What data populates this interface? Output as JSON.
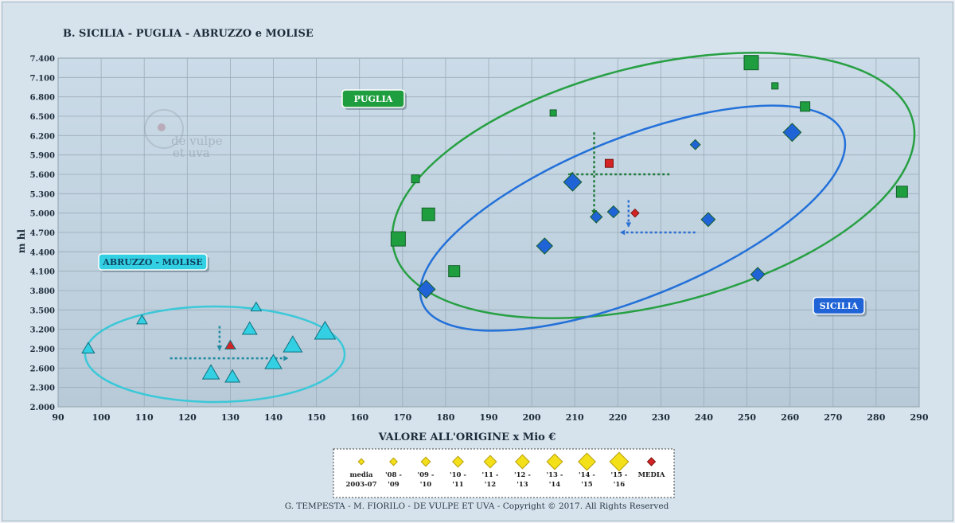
{
  "chart_data": {
    "type": "scatter",
    "title": "B.  SICILIA - PUGLIA - ABRUZZO e MOLISE",
    "xlabel": "VALORE ALL'ORIGINE  x Mio €",
    "ylabel": "m hl",
    "xlim": [
      90,
      290
    ],
    "ylim": [
      2000,
      7400
    ],
    "xticks": [
      "90",
      "100",
      "110",
      "120",
      "130",
      "140",
      "150",
      "160",
      "170",
      "180",
      "190",
      "200",
      "210",
      "220",
      "230",
      "240",
      "250",
      "260",
      "270",
      "280",
      "290"
    ],
    "yticks": [
      "2.000",
      "2.300",
      "2.600",
      "2.900",
      "3.200",
      "3.500",
      "3.800",
      "4.100",
      "4.400",
      "4.700",
      "5.000",
      "5.300",
      "5.600",
      "5.900",
      "6.200",
      "6.500",
      "6.800",
      "7.100",
      "7.400"
    ],
    "grid": true,
    "series": [
      {
        "name": "PUGLIA",
        "marker": "square",
        "color": "#1f9e3f",
        "points": [
          {
            "x": 169,
            "y": 4600,
            "s": 9
          },
          {
            "x": 176,
            "y": 4980,
            "s": 8
          },
          {
            "x": 182,
            "y": 4100,
            "s": 7
          },
          {
            "x": 173,
            "y": 5530,
            "s": 5
          },
          {
            "x": 205,
            "y": 6550,
            "s": 4
          },
          {
            "x": 251,
            "y": 7330,
            "s": 9
          },
          {
            "x": 256.5,
            "y": 6970,
            "s": 4
          },
          {
            "x": 263.5,
            "y": 6650,
            "s": 6
          },
          {
            "x": 286,
            "y": 5330,
            "s": 7
          }
        ],
        "media": {
          "x": 218,
          "y": 5770
        }
      },
      {
        "name": "SICILIA",
        "marker": "diamond",
        "color": "#1f63d6",
        "points": [
          {
            "x": 175.5,
            "y": 3820,
            "s": 9
          },
          {
            "x": 203,
            "y": 4490,
            "s": 8
          },
          {
            "x": 209.5,
            "y": 5480,
            "s": 9
          },
          {
            "x": 215,
            "y": 4940,
            "s": 6
          },
          {
            "x": 219,
            "y": 5020,
            "s": 6
          },
          {
            "x": 238,
            "y": 6060,
            "s": 5
          },
          {
            "x": 241,
            "y": 4900,
            "s": 7
          },
          {
            "x": 252.5,
            "y": 4050,
            "s": 7
          },
          {
            "x": 260.5,
            "y": 6250,
            "s": 9
          }
        ],
        "media": {
          "x": 224,
          "y": 5000
        }
      },
      {
        "name": "ABRUZZO - MOLISE",
        "marker": "triangle",
        "color": "#33d0e4",
        "points": [
          {
            "x": 97,
            "y": 2900,
            "s": 6
          },
          {
            "x": 109.5,
            "y": 3340,
            "s": 5
          },
          {
            "x": 125.5,
            "y": 2520,
            "s": 8
          },
          {
            "x": 130.5,
            "y": 2460,
            "s": 7
          },
          {
            "x": 134.5,
            "y": 3200,
            "s": 7
          },
          {
            "x": 136,
            "y": 3540,
            "s": 5
          },
          {
            "x": 140,
            "y": 2680,
            "s": 8
          },
          {
            "x": 144.5,
            "y": 2950,
            "s": 9
          },
          {
            "x": 152,
            "y": 3160,
            "s": 10
          }
        ],
        "media": {
          "x": 130,
          "y": 2950
        }
      }
    ],
    "region_labels": [
      {
        "text": "PUGLIA",
        "color": "#1f9e3f"
      },
      {
        "text": "ABRUZZO - MOLISE",
        "color": "#33d0e4"
      },
      {
        "text": "SICILIA",
        "color": "#1f63d6"
      }
    ],
    "legend": {
      "placement": "bottom-center",
      "items": [
        {
          "line1": "media",
          "line2": "2003-07"
        },
        {
          "line1": "'08 -",
          "line2": "'09"
        },
        {
          "line1": "'09 -",
          "line2": "'10"
        },
        {
          "line1": "'10 -",
          "line2": "'11"
        },
        {
          "line1": "'11 -",
          "line2": "'12"
        },
        {
          "line1": "'12 -",
          "line2": "'13"
        },
        {
          "line1": "'13 -",
          "line2": "'14"
        },
        {
          "line1": "'14 -",
          "line2": "'15"
        },
        {
          "line1": "'15 -",
          "line2": "'16"
        },
        {
          "line1": "MEDIA",
          "line2": ""
        }
      ],
      "item_color": "#f3e019",
      "media_color": "#d42323"
    },
    "footer": "G. TEMPESTA - M. FIORILO    -    DE VULPE ET UVA    -    Copyright © 2017. All Rights Reserved",
    "watermark": {
      "line1": "de vulpe",
      "line2": "et uva"
    }
  }
}
